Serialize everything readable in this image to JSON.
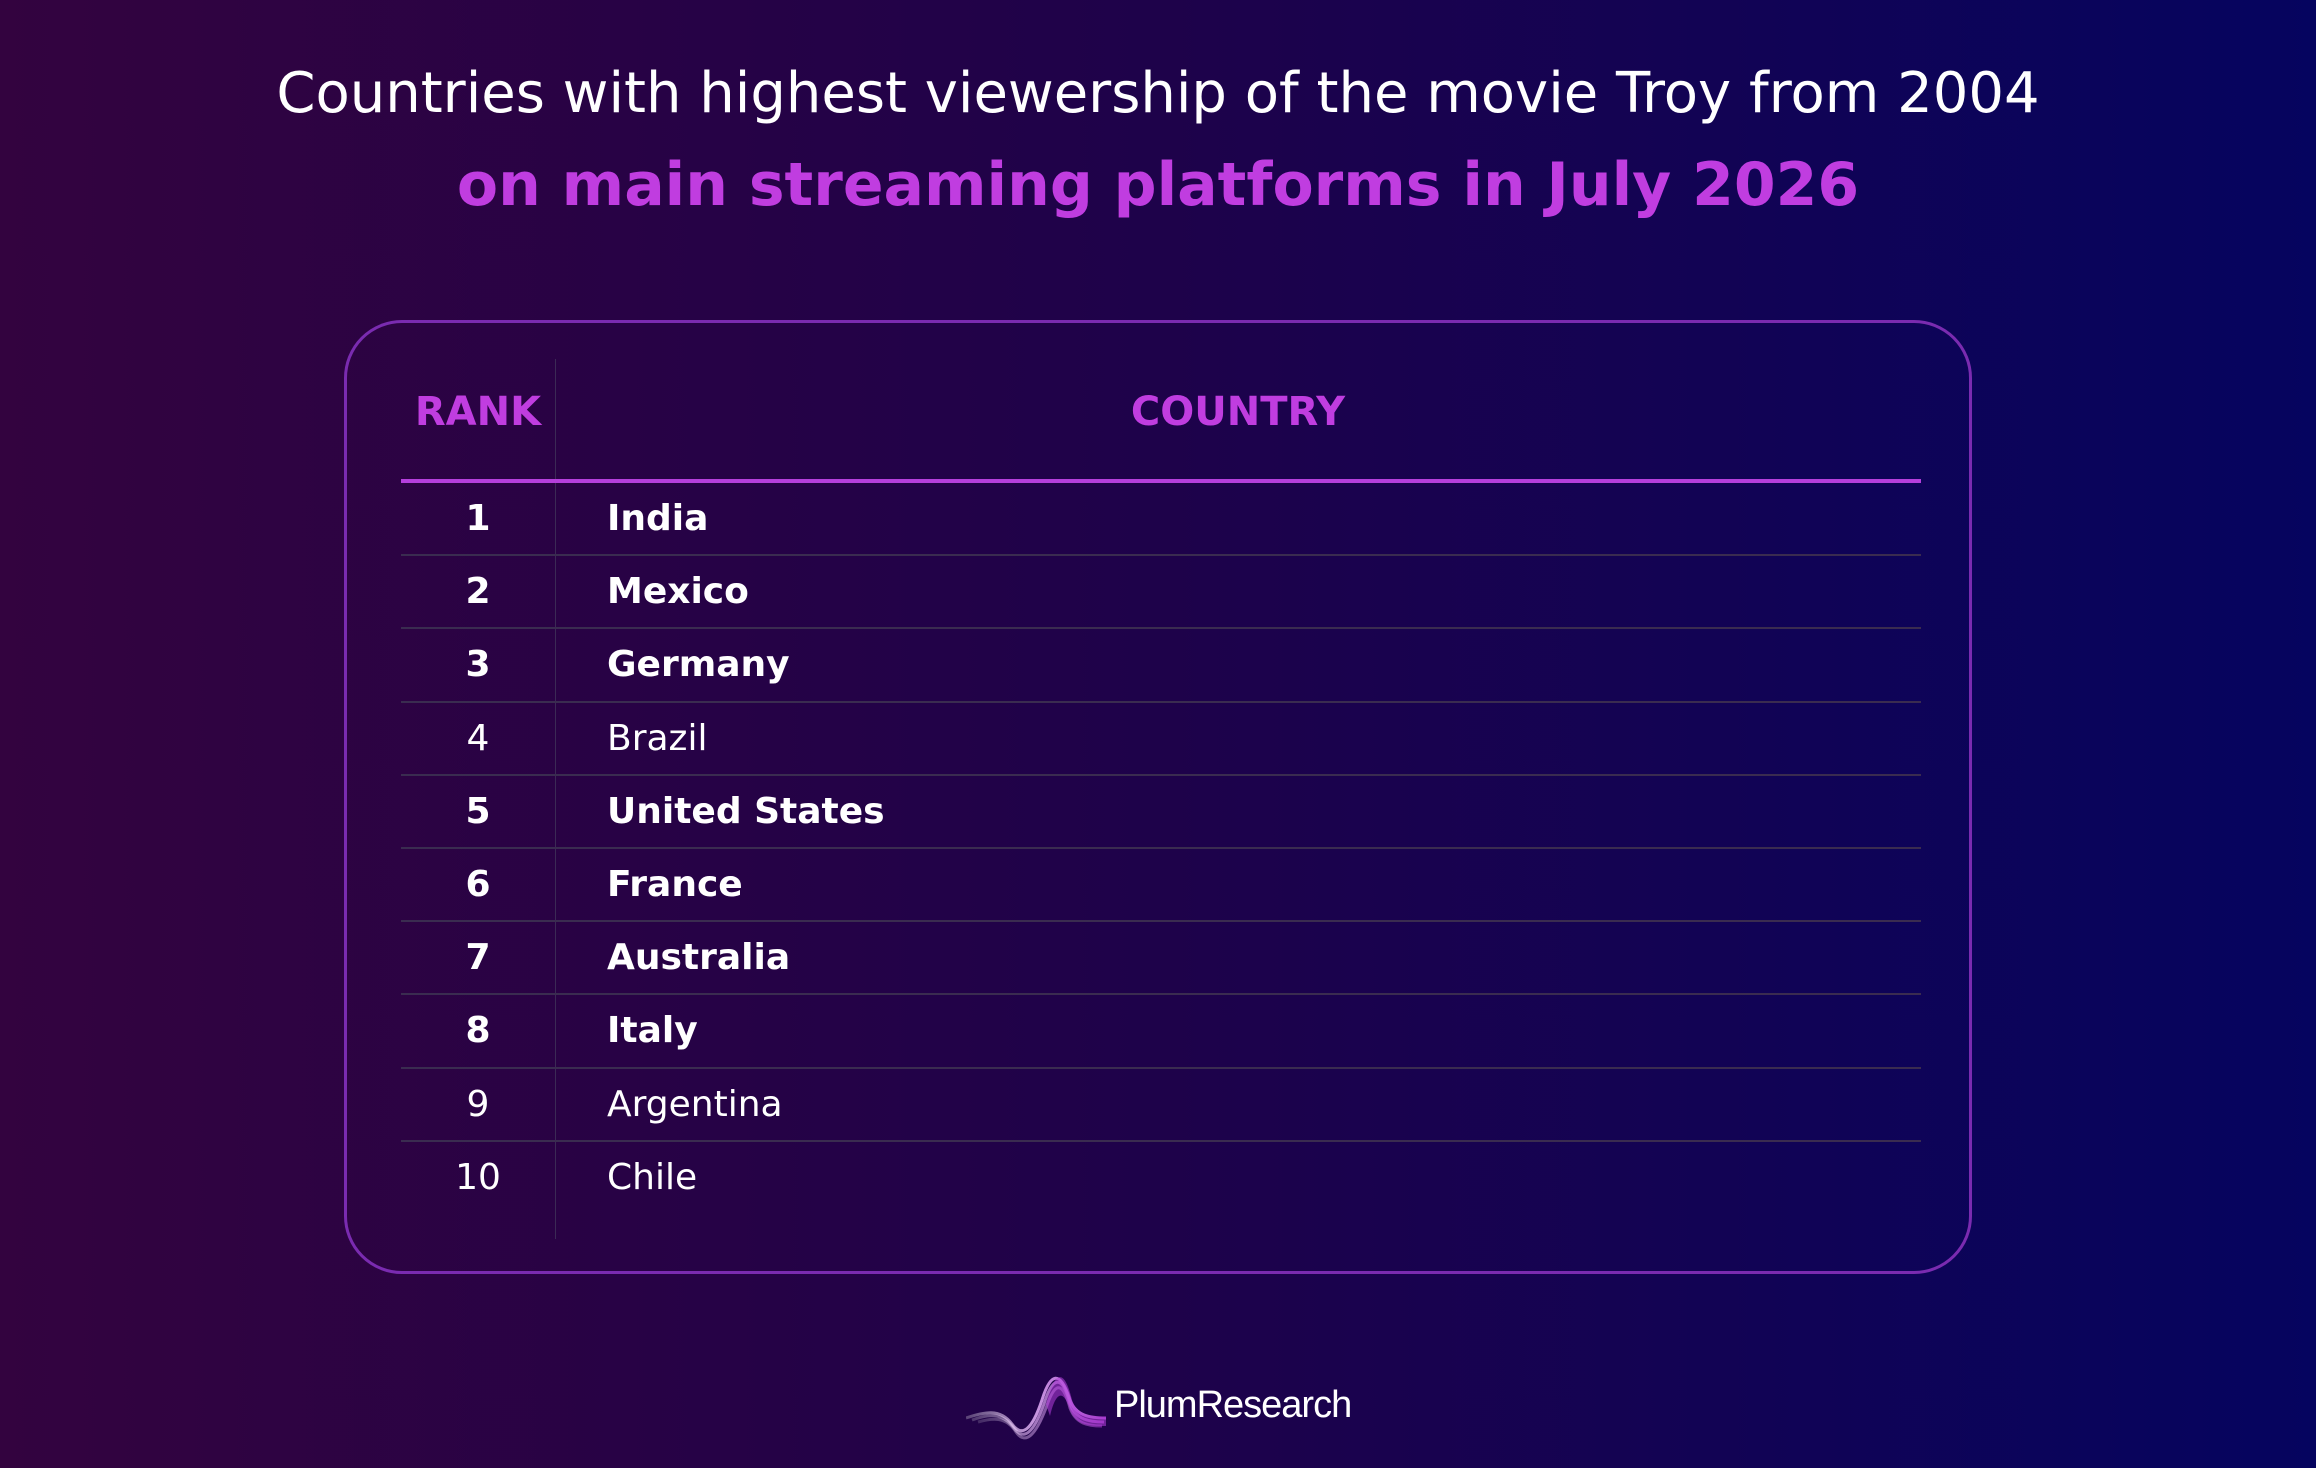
{
  "header": {
    "title": "Countries with highest viewership of the movie Troy from 2004",
    "subtitle": "on main streaming platforms in July 2026"
  },
  "table": {
    "columns": [
      "RANK",
      "COUNTRY"
    ],
    "rows": [
      {
        "rank": "1",
        "country": "India",
        "bold": true
      },
      {
        "rank": "2",
        "country": "Mexico",
        "bold": true
      },
      {
        "rank": "3",
        "country": "Germany",
        "bold": true
      },
      {
        "rank": "4",
        "country": "Brazil",
        "bold": false
      },
      {
        "rank": "5",
        "country": "United States",
        "bold": true
      },
      {
        "rank": "6",
        "country": "France",
        "bold": true
      },
      {
        "rank": "7",
        "country": "Australia",
        "bold": true
      },
      {
        "rank": "8",
        "country": "Italy",
        "bold": true
      },
      {
        "rank": "9",
        "country": "Argentina",
        "bold": false
      },
      {
        "rank": "10",
        "country": "Chile",
        "bold": false
      }
    ]
  },
  "branding": {
    "logo_text": "PlumResearch",
    "logo_icon": "wave-peak-icon"
  },
  "colors": {
    "accent": "#c03de0",
    "border": "#7a2bb0",
    "text": "#ffffff"
  }
}
